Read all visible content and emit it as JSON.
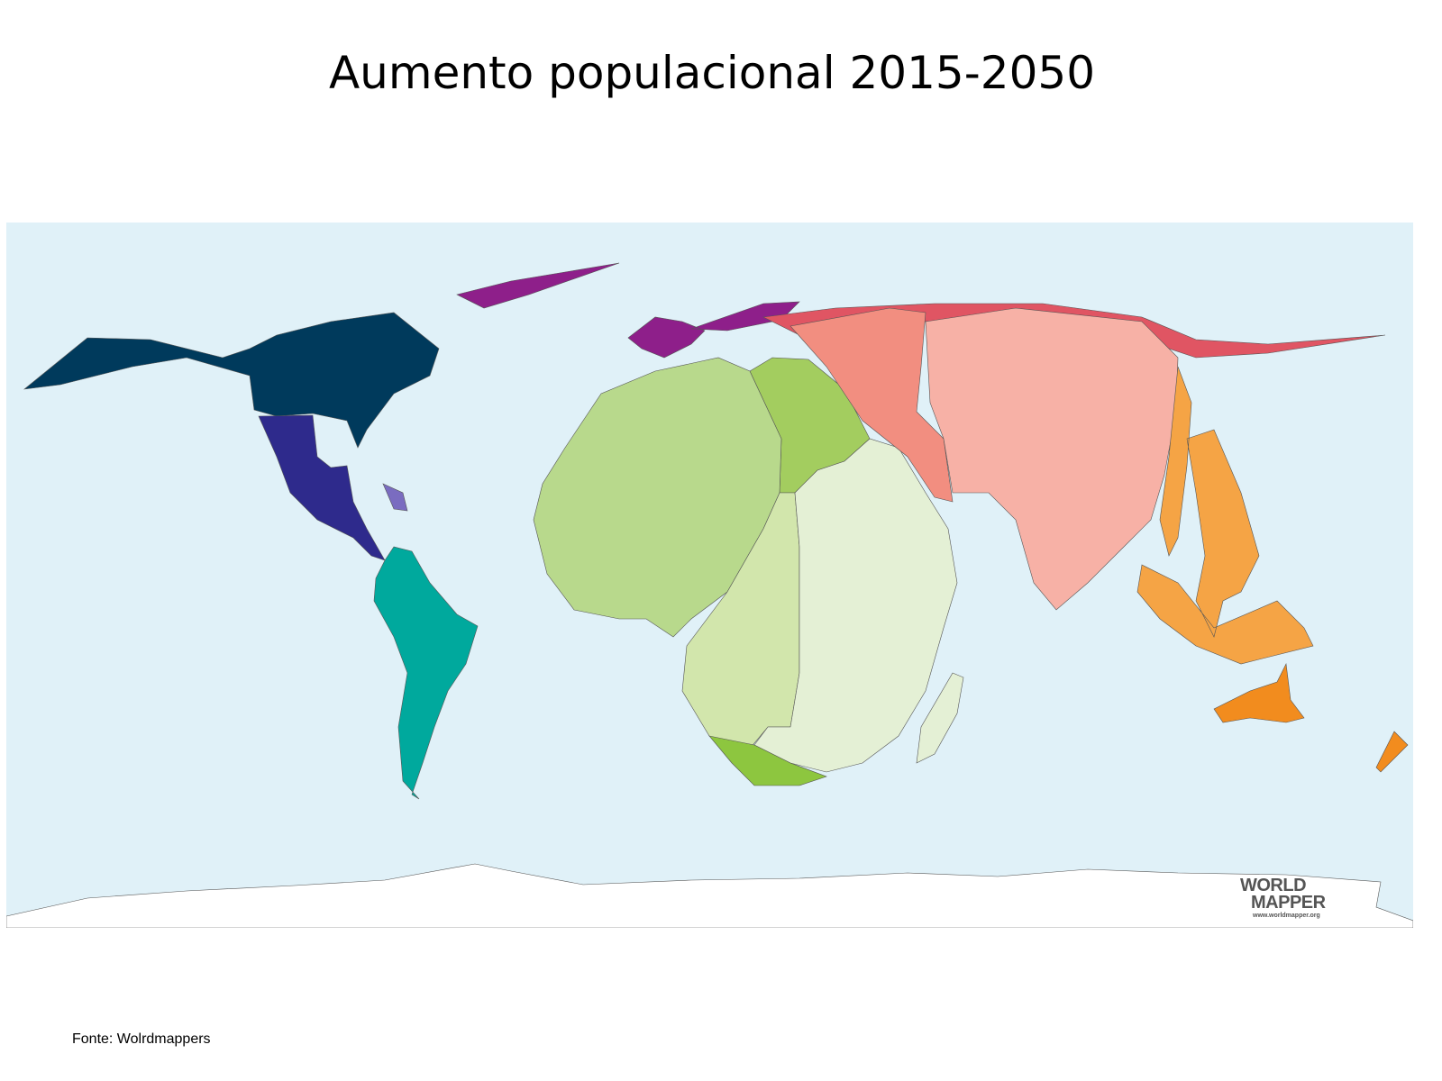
{
  "title": "Aumento populacional 2015-2050",
  "source": "Fonte: Wolrdmappers",
  "logo": {
    "line1": "WORLD",
    "line2": "MAPPER",
    "url": "www.worldmapper.org"
  },
  "map": {
    "type": "cartogram",
    "ocean_color": "#e0f1f8",
    "regions": [
      {
        "name": "north-america",
        "color": "#003a5c"
      },
      {
        "name": "central-america-mexico",
        "color": "#2e2a8c"
      },
      {
        "name": "caribbean",
        "color": "#7a6cc0"
      },
      {
        "name": "south-america",
        "color": "#00a99d"
      },
      {
        "name": "western-europe",
        "color": "#8e1f8a"
      },
      {
        "name": "eastern-europe",
        "color": "#e05563"
      },
      {
        "name": "northern-africa",
        "color": "#b8d98c"
      },
      {
        "name": "middle-east",
        "color": "#a3cd5f"
      },
      {
        "name": "central-africa",
        "color": "#d2e6ac"
      },
      {
        "name": "eastern-africa",
        "color": "#e4f0d5"
      },
      {
        "name": "southern-africa",
        "color": "#8dc63f"
      },
      {
        "name": "central-asia",
        "color": "#f28e80"
      },
      {
        "name": "south-asia",
        "color": "#f7b1a6"
      },
      {
        "name": "southeast-asia",
        "color": "#f5a445"
      },
      {
        "name": "oceania",
        "color": "#f28c1e"
      }
    ]
  }
}
